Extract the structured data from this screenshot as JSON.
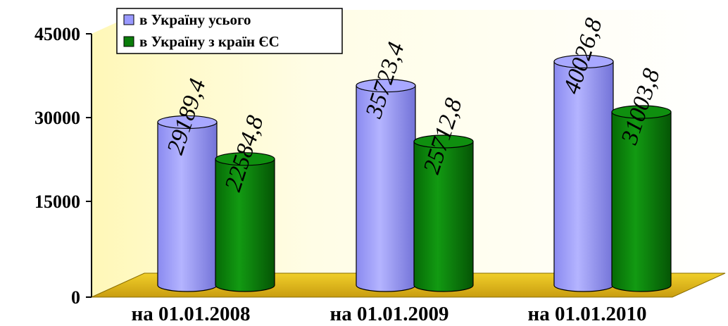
{
  "chart_data": {
    "type": "bar",
    "style": "3d-cylinder",
    "categories": [
      "на 01.01.2008",
      "на 01.01.2009",
      "на 01.01.2010"
    ],
    "series": [
      {
        "name": "в Україну усього",
        "values": [
          29189.4,
          35723.4,
          40026.8
        ],
        "labels": [
          "29189,4",
          "35723,4",
          "40026,8"
        ],
        "color": "#9999ff"
      },
      {
        "name": "в Україну з країн ЄС",
        "values": [
          22584.8,
          25712.8,
          31003.8
        ],
        "labels": [
          "22584,8",
          "25712,8",
          "31003,8"
        ],
        "color": "#0b7d0b"
      }
    ],
    "yticks": [
      "45000",
      "30000",
      "15000",
      "0"
    ],
    "ylim": [
      0,
      45000
    ],
    "grid": false,
    "legend_position": "top-left",
    "colors": {
      "floor": "#e8c21a",
      "wall": "#fffbd0"
    }
  }
}
